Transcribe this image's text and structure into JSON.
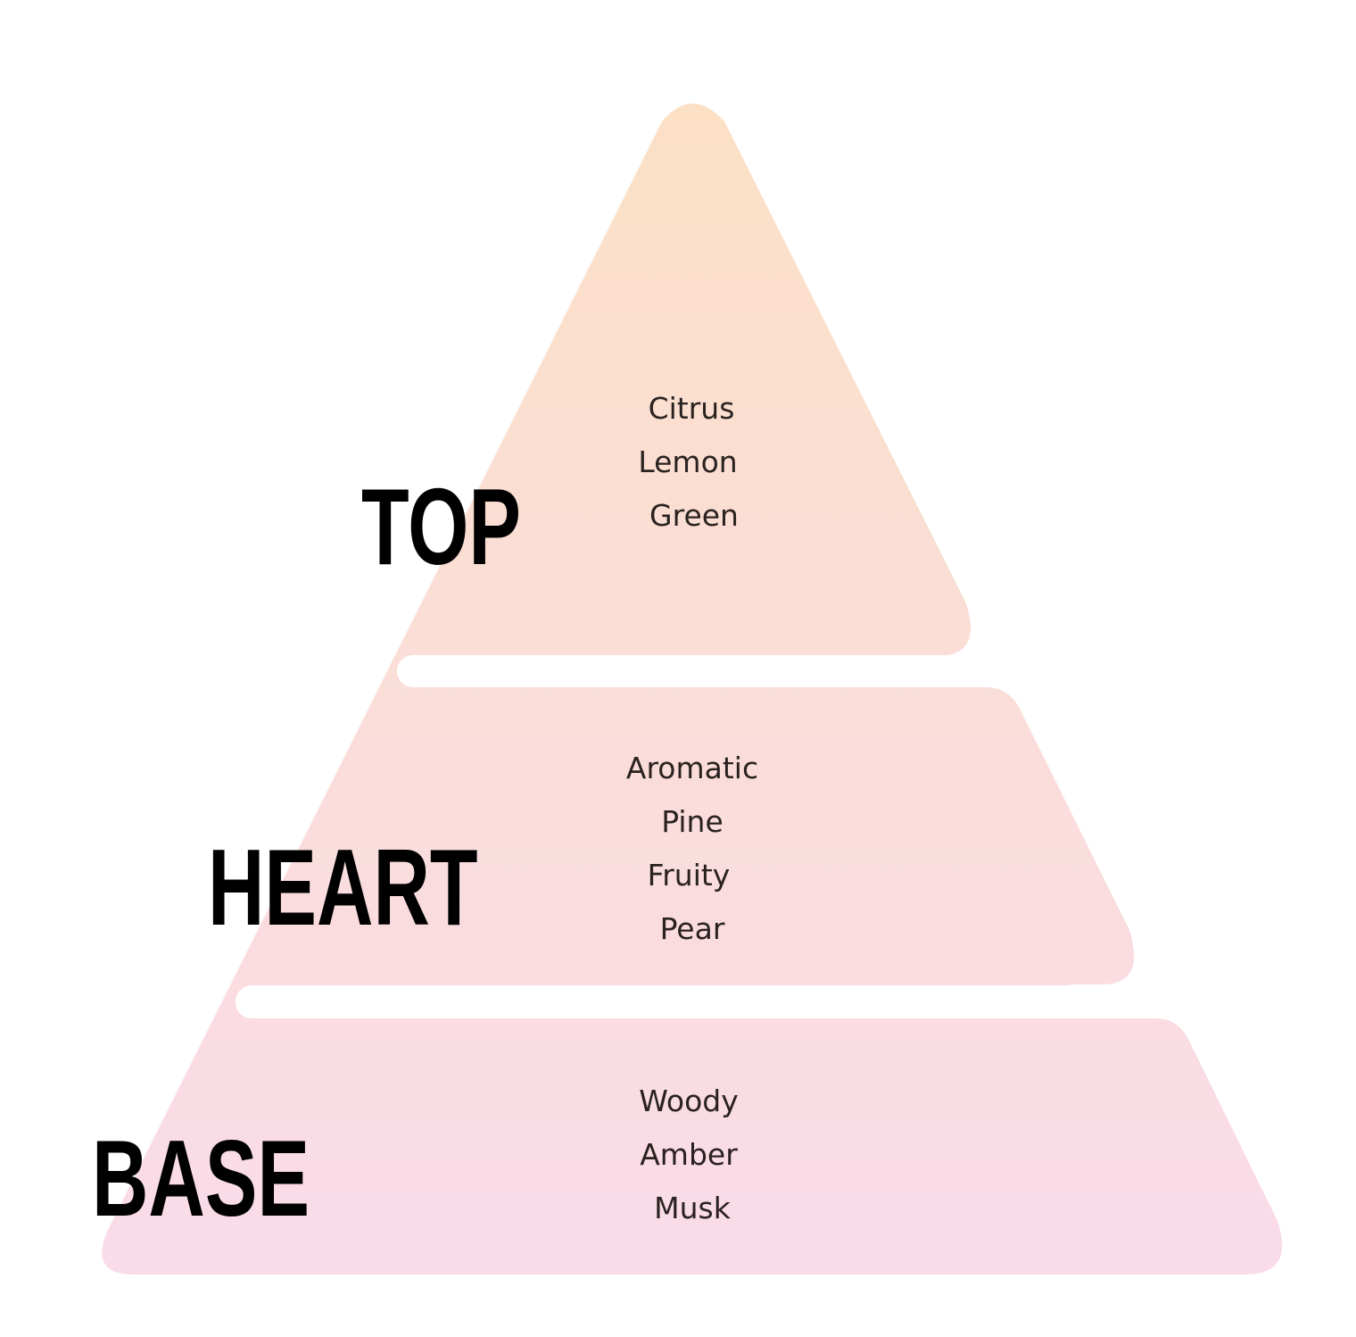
{
  "colors": {
    "gradient_top": "#FBE0C6",
    "gradient_bottom": "#FADBEA",
    "label": "#000000",
    "note_text": "#2a2220"
  },
  "tiers": [
    {
      "label": "TOP",
      "notes": [
        "Citrus",
        "Lemon",
        "Green"
      ]
    },
    {
      "label": "HEART",
      "notes": [
        "Aromatic",
        "Pine",
        "Fruity",
        "Pear"
      ]
    },
    {
      "label": "BASE",
      "notes": [
        "Woody",
        "Amber",
        "Musk"
      ]
    }
  ]
}
